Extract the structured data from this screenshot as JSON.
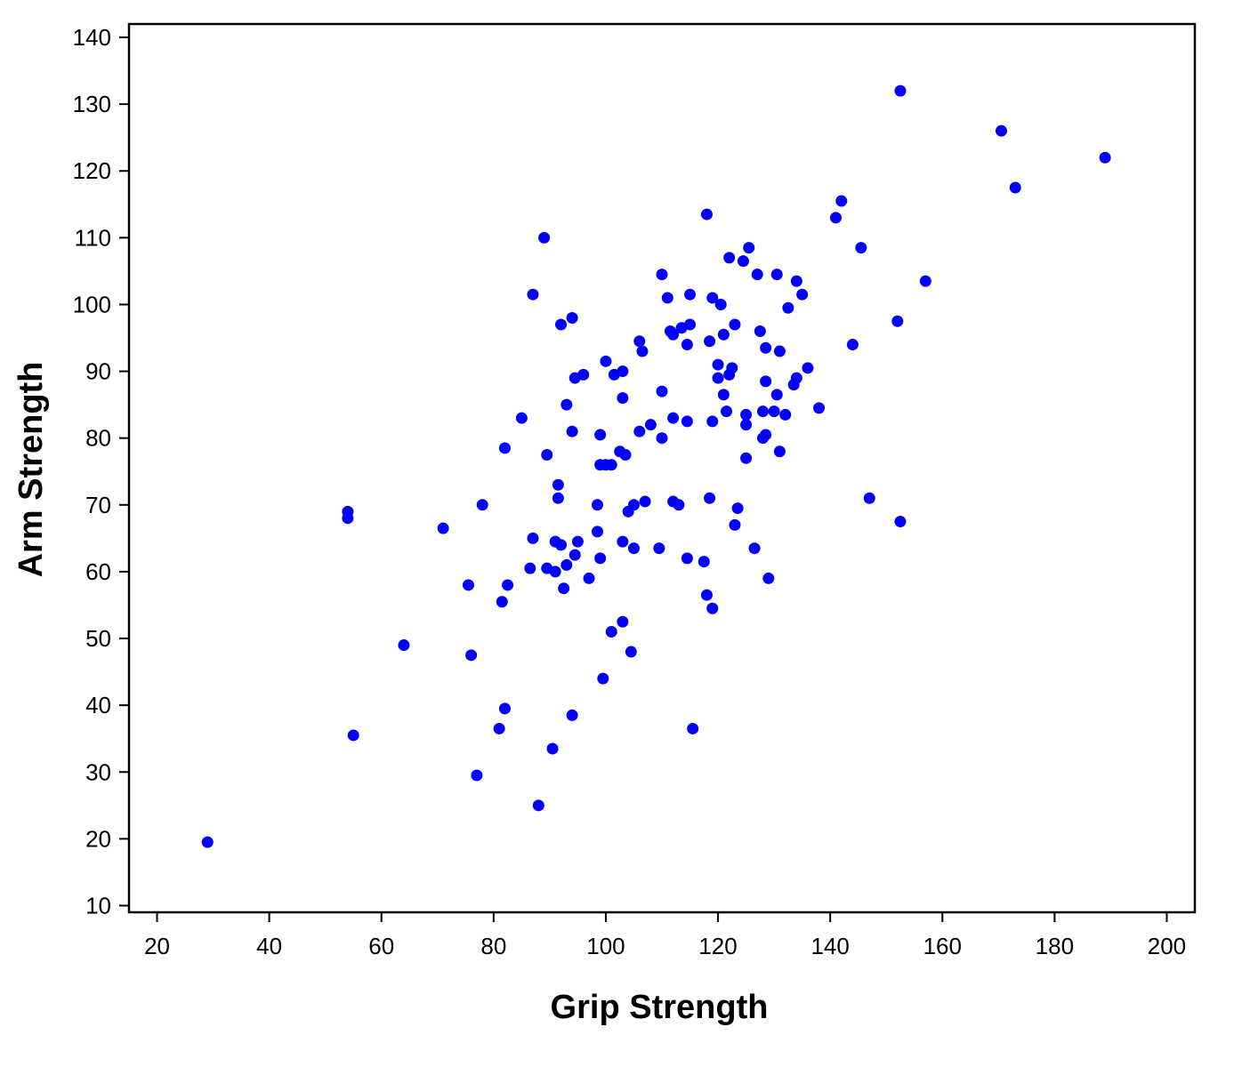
{
  "chart_data": {
    "type": "scatter",
    "title": "",
    "xlabel": "Grip Strength",
    "ylabel": "Arm Strength",
    "xlim": [
      15,
      205
    ],
    "ylim": [
      9,
      142
    ],
    "xticks": [
      20,
      40,
      60,
      80,
      100,
      120,
      140,
      160,
      180,
      200
    ],
    "yticks": [
      10,
      20,
      30,
      40,
      50,
      60,
      70,
      80,
      90,
      100,
      110,
      120,
      130,
      140
    ],
    "grid": false,
    "legend": "none",
    "marker_color": "#0000ff",
    "series": [
      {
        "points": [
          [
            29,
            19.5
          ],
          [
            54,
            69
          ],
          [
            54,
            68
          ],
          [
            55,
            35.5
          ],
          [
            64,
            49
          ],
          [
            71,
            66.5
          ],
          [
            75.5,
            58
          ],
          [
            76,
            47.5
          ],
          [
            77,
            29.5
          ],
          [
            78,
            70
          ],
          [
            81,
            36.5
          ],
          [
            81.5,
            55.5
          ],
          [
            82,
            39.5
          ],
          [
            82,
            78.5
          ],
          [
            82.5,
            58
          ],
          [
            85,
            83
          ],
          [
            87,
            101.5
          ],
          [
            87,
            65
          ],
          [
            86.5,
            60.5
          ],
          [
            88,
            25
          ],
          [
            89,
            110
          ],
          [
            89.5,
            77.5
          ],
          [
            89.5,
            60.5
          ],
          [
            91,
            64.5
          ],
          [
            90.5,
            33.5
          ],
          [
            91,
            60
          ],
          [
            91.5,
            73
          ],
          [
            91.5,
            71
          ],
          [
            92,
            97
          ],
          [
            92,
            64
          ],
          [
            92.5,
            57.5
          ],
          [
            93,
            85
          ],
          [
            93,
            61
          ],
          [
            94,
            98
          ],
          [
            94,
            81
          ],
          [
            94,
            38.5
          ],
          [
            94.5,
            89
          ],
          [
            94.5,
            62.5
          ],
          [
            95,
            64.5
          ],
          [
            96,
            89.5
          ],
          [
            97,
            59
          ],
          [
            98.5,
            70
          ],
          [
            98.5,
            66
          ],
          [
            99,
            80.5
          ],
          [
            99,
            76
          ],
          [
            99,
            62
          ],
          [
            99.5,
            44
          ],
          [
            100,
            91.5
          ],
          [
            100,
            76
          ],
          [
            101,
            76
          ],
          [
            101,
            51
          ],
          [
            101.5,
            89.5
          ],
          [
            102.5,
            78
          ],
          [
            103,
            90
          ],
          [
            103,
            86
          ],
          [
            103,
            64.5
          ],
          [
            103,
            52.5
          ],
          [
            103.5,
            77.5
          ],
          [
            104,
            69
          ],
          [
            104.5,
            48
          ],
          [
            105,
            70
          ],
          [
            105,
            63.5
          ],
          [
            106,
            94.5
          ],
          [
            106,
            81
          ],
          [
            106.5,
            93
          ],
          [
            107,
            70.5
          ],
          [
            108,
            82
          ],
          [
            109.5,
            63.5
          ],
          [
            110,
            104.5
          ],
          [
            110,
            87
          ],
          [
            110,
            80
          ],
          [
            111,
            101
          ],
          [
            111.5,
            96
          ],
          [
            112,
            95.5
          ],
          [
            112,
            83
          ],
          [
            112,
            70.5
          ],
          [
            113,
            70
          ],
          [
            113.5,
            96.5
          ],
          [
            114.5,
            94
          ],
          [
            114.5,
            82.5
          ],
          [
            114.5,
            62
          ],
          [
            115,
            101.5
          ],
          [
            115,
            97
          ],
          [
            115.5,
            36.5
          ],
          [
            117.5,
            61.5
          ],
          [
            118,
            56.5
          ],
          [
            118,
            113.5
          ],
          [
            118.5,
            94.5
          ],
          [
            118.5,
            71
          ],
          [
            119,
            101
          ],
          [
            119,
            82.5
          ],
          [
            119,
            54.5
          ],
          [
            120,
            91
          ],
          [
            120,
            89
          ],
          [
            120.5,
            100
          ],
          [
            121,
            95.5
          ],
          [
            121,
            86.5
          ],
          [
            121.5,
            84
          ],
          [
            122,
            107
          ],
          [
            122,
            89.5
          ],
          [
            122.5,
            90.5
          ],
          [
            123,
            97
          ],
          [
            123,
            67
          ],
          [
            123.5,
            69.5
          ],
          [
            124.5,
            106.5
          ],
          [
            125,
            83.5
          ],
          [
            125,
            82
          ],
          [
            125,
            77
          ],
          [
            125.5,
            108.5
          ],
          [
            126.5,
            63.5
          ],
          [
            127,
            104.5
          ],
          [
            127.5,
            96
          ],
          [
            128,
            84
          ],
          [
            128,
            80
          ],
          [
            128.5,
            88.5
          ],
          [
            128.5,
            93.5
          ],
          [
            128.5,
            80.5
          ],
          [
            129,
            59
          ],
          [
            130,
            84
          ],
          [
            130.5,
            104.5
          ],
          [
            130.5,
            86.5
          ],
          [
            131,
            93
          ],
          [
            131,
            78
          ],
          [
            132,
            83.5
          ],
          [
            132.5,
            99.5
          ],
          [
            133.5,
            88
          ],
          [
            134,
            89
          ],
          [
            134,
            103.5
          ],
          [
            135,
            101.5
          ],
          [
            136,
            90.5
          ],
          [
            138,
            84.5
          ],
          [
            141,
            113
          ],
          [
            142,
            115.5
          ],
          [
            144,
            94
          ],
          [
            145.5,
            108.5
          ],
          [
            147,
            71
          ],
          [
            152,
            97.5
          ],
          [
            152.5,
            132
          ],
          [
            152.5,
            67.5
          ],
          [
            157,
            103.5
          ],
          [
            170.5,
            126
          ],
          [
            173,
            117.5
          ],
          [
            189,
            122
          ]
        ]
      }
    ]
  }
}
